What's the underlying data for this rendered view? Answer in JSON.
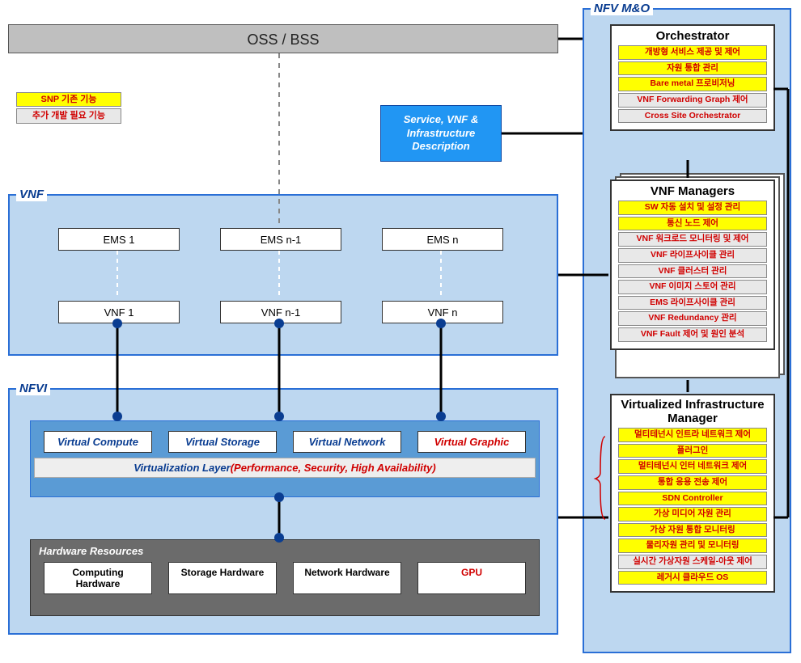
{
  "oss_label": "OSS / BSS",
  "legend": {
    "existing": "SNP 기존 기능",
    "additional": "추가 개발 필요 기능"
  },
  "svc_desc": "Service, VNF & Infrastructure Description",
  "vnf": {
    "title": "VNF",
    "ems": [
      "EMS 1",
      "EMS n-1",
      "EMS n"
    ],
    "vnfs": [
      "VNF 1",
      "VNF n-1",
      "VNF n"
    ]
  },
  "nfvi": {
    "title": "NFVI",
    "virtual": [
      "Virtual Compute",
      "Virtual Storage",
      "Virtual Network",
      "Virtual Graphic"
    ],
    "virt_layer_prefix": "Virtualization Layer",
    "virt_layer_note": "(Performance, Security, High Availability)",
    "hw_title": "Hardware Resources",
    "hw": [
      "Computing Hardware",
      "Storage Hardware",
      "Network Hardware",
      "GPU"
    ]
  },
  "mo": {
    "title": "NFV M&O",
    "orchestrator": {
      "title": "Orchestrator",
      "items": [
        {
          "label": "개방형 서비스 제공 및 제어",
          "style": "yellow"
        },
        {
          "label": "자원 통합 관리",
          "style": "yellow"
        },
        {
          "label": "Bare metal 프로비저닝",
          "style": "yellow"
        },
        {
          "label": "VNF Forwarding Graph 제어",
          "style": "grey"
        },
        {
          "label": "Cross Site Orchestrator",
          "style": "grey"
        }
      ]
    },
    "vnf_managers": {
      "title": "VNF Managers",
      "items": [
        {
          "label": "SW 자동 설치 및 설정 관리",
          "style": "yellow"
        },
        {
          "label": "통신 노드 제어",
          "style": "yellow"
        },
        {
          "label": "VNF 워크로드 모니터링 및 제어",
          "style": "grey"
        },
        {
          "label": "VNF 라이프사이클 관리",
          "style": "grey"
        },
        {
          "label": "VNF 클러스터 관리",
          "style": "grey"
        },
        {
          "label": "VNF 이미지 스토어 관리",
          "style": "grey"
        },
        {
          "label": "EMS 라이프사이클 관리",
          "style": "grey"
        },
        {
          "label": "VNF Redundancy 관리",
          "style": "grey"
        },
        {
          "label": "VNF Fault 제어 및 원인 분석",
          "style": "grey"
        }
      ]
    },
    "vim": {
      "title": "Virtualized Infrastructure Manager",
      "items": [
        {
          "label": "멀티테넌시 인트라 네트워크 제어",
          "style": "yellow"
        },
        {
          "label": "플러그인",
          "style": "yellow"
        },
        {
          "label": "멀티테넌시 인터 네트워크 제어",
          "style": "yellow"
        },
        {
          "label": "통합 응용 전송 제어",
          "style": "yellow"
        },
        {
          "label": "SDN Controller",
          "style": "yellow"
        },
        {
          "label": "가상 미디어 자원 관리",
          "style": "yellow"
        },
        {
          "label": "가상 자원 통합 모니터링",
          "style": "yellow"
        },
        {
          "label": "물리자원 관리 및 모니터링",
          "style": "yellow"
        },
        {
          "label": "실시간 가상자원 스케일-아웃 제어",
          "style": "grey"
        },
        {
          "label": "레거시 클라우드 OS",
          "style": "yellow"
        }
      ]
    }
  },
  "colors": {
    "panel_border": "#2a6fd6",
    "panel_bg": "#bdd7f0",
    "yellow": "#ffff00",
    "grey": "#e8e8e8",
    "red_text": "#d00000",
    "oss_bg": "#bfbfbf",
    "svc_bg": "#2196f3"
  }
}
